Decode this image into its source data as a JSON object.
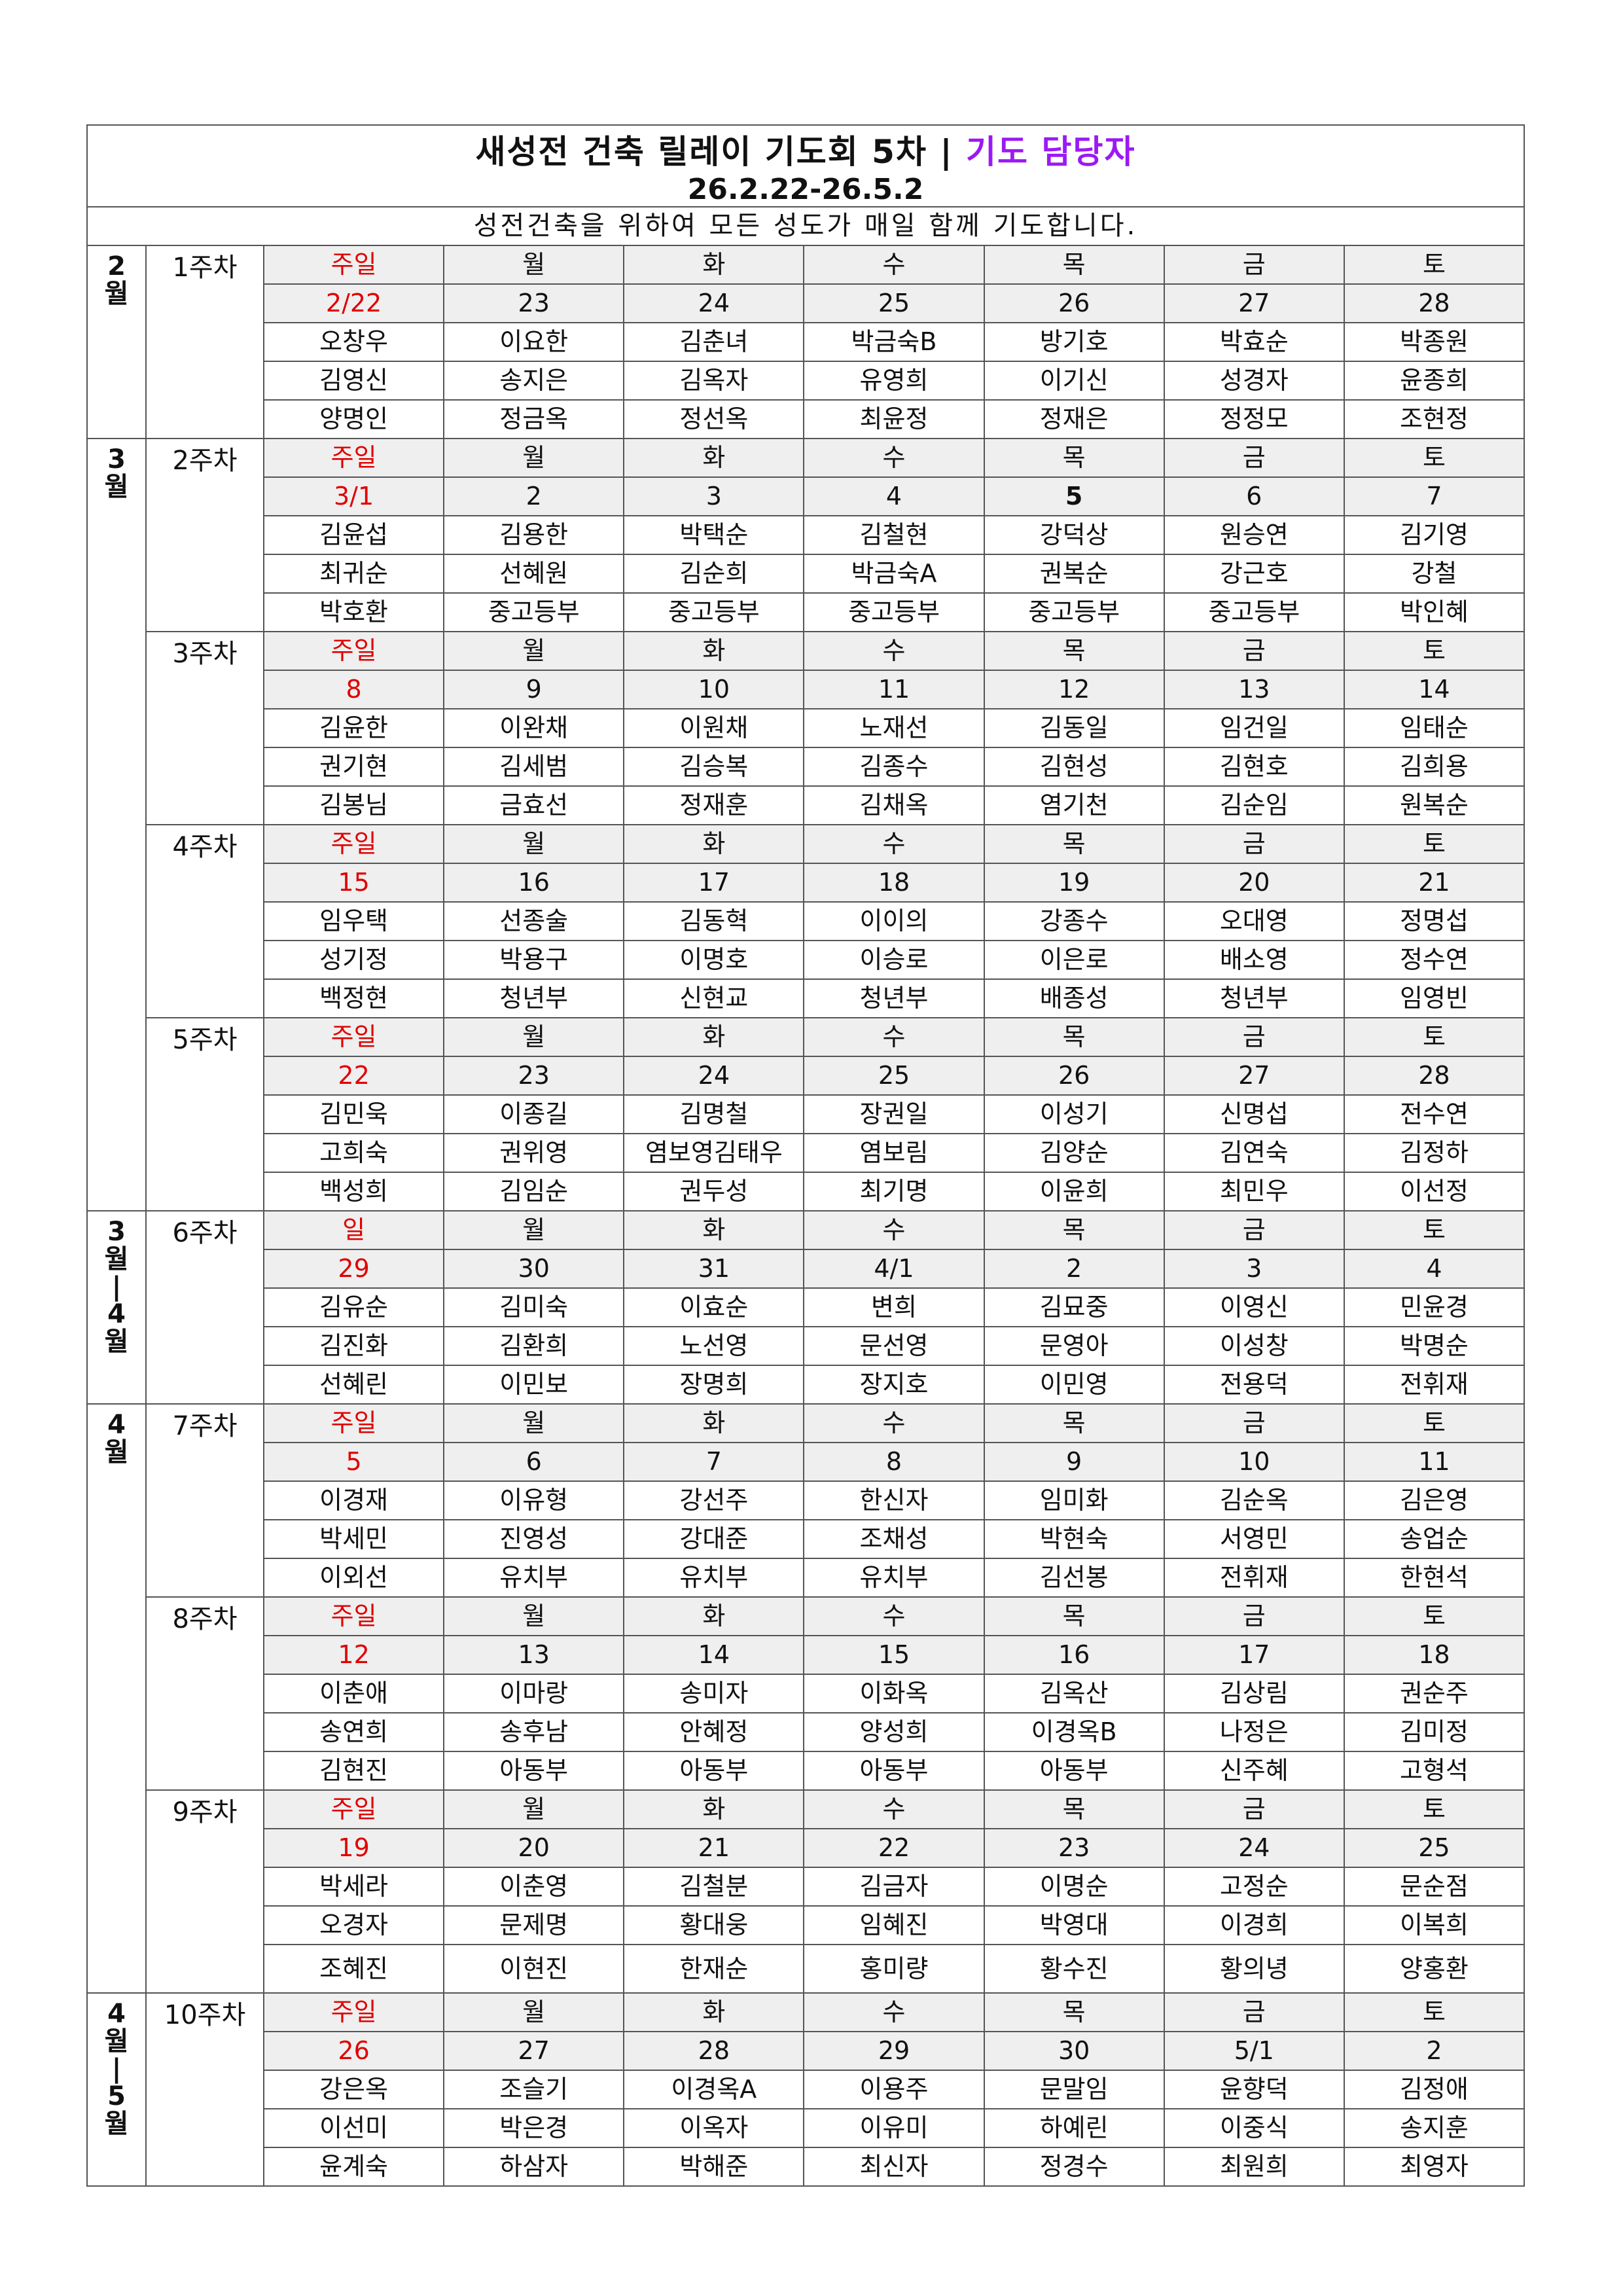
{
  "header": {
    "title_main": "새성전 건축 릴레이 기도회 5차 |",
    "title_accent": "기도 담당자",
    "accent_color": "#9b19f5",
    "period": "26.2.22-26.5.2",
    "subtitle": "성전건축을 위하여 모든 성도가 매일 함께 기도합니다."
  },
  "sunday_color": "#e00000",
  "day_names": [
    "월",
    "화",
    "수",
    "목",
    "금",
    "토"
  ],
  "months": [
    {
      "label": [
        "2",
        "월"
      ],
      "weeks": 1
    },
    {
      "label": [
        "3",
        "월"
      ],
      "weeks": 4
    },
    {
      "label": [
        "3",
        "월",
        "|",
        "4",
        "월"
      ],
      "weeks": 1
    },
    {
      "label": [
        "4",
        "월"
      ],
      "weeks": 3
    },
    {
      "label": [
        "4",
        "월",
        "|",
        "5",
        "월"
      ],
      "weeks": 1
    }
  ],
  "weeks": [
    {
      "label": "1주차",
      "sunday": "주일",
      "dates": [
        "2/22",
        "23",
        "24",
        "25",
        "26",
        "27",
        "28"
      ],
      "names": [
        [
          "오창우",
          "이요한",
          "김춘녀",
          "박금숙B",
          "방기호",
          "박효순",
          "박종원"
        ],
        [
          "김영신",
          "송지은",
          "김옥자",
          "유영희",
          "이기신",
          "성경자",
          "윤종희"
        ],
        [
          "양명인",
          "정금옥",
          "정선옥",
          "최윤정",
          "정재은",
          "정정모",
          "조현정"
        ]
      ]
    },
    {
      "label": "2주차",
      "sunday": "주일",
      "dates": [
        "3/1",
        "2",
        "3",
        "4",
        "5",
        "6",
        "7"
      ],
      "bold_date": 4,
      "names": [
        [
          "김윤섭",
          "김용한",
          "박택순",
          "김철현",
          "강덕상",
          "원승연",
          "김기영"
        ],
        [
          "최귀순",
          "선혜원",
          "김순희",
          "박금숙A",
          "권복순",
          "강근호",
          "강철"
        ],
        [
          "박호환",
          "중고등부",
          "중고등부",
          "중고등부",
          "중고등부",
          "중고등부",
          "박인혜"
        ]
      ]
    },
    {
      "label": "3주차",
      "sunday": "주일",
      "dates": [
        "8",
        "9",
        "10",
        "11",
        "12",
        "13",
        "14"
      ],
      "names": [
        [
          "김윤한",
          "이완채",
          "이원채",
          "노재선",
          "김동일",
          "임건일",
          "임태순"
        ],
        [
          "권기현",
          "김세범",
          "김승복",
          "김종수",
          "김현성",
          "김현호",
          "김희용"
        ],
        [
          "김봉님",
          "금효선",
          "정재훈",
          "김채옥",
          "염기천",
          "김순임",
          "원복순"
        ]
      ]
    },
    {
      "label": "4주차",
      "sunday": "주일",
      "dates": [
        "15",
        "16",
        "17",
        "18",
        "19",
        "20",
        "21"
      ],
      "names": [
        [
          "임우택",
          "선종술",
          "김동혁",
          "이이의",
          "강종수",
          "오대영",
          "정명섭"
        ],
        [
          "성기정",
          "박용구",
          "이명호",
          "이승로",
          "이은로",
          "배소영",
          "정수연"
        ],
        [
          "백정현",
          "청년부",
          "신현교",
          "청년부",
          "배종성",
          "청년부",
          "임영빈"
        ]
      ]
    },
    {
      "label": "5주차",
      "sunday": "주일",
      "dates": [
        "22",
        "23",
        "24",
        "25",
        "26",
        "27",
        "28"
      ],
      "names": [
        [
          "김민욱",
          "이종길",
          "김명철",
          "장권일",
          "이성기",
          "신명섭",
          "전수연"
        ],
        [
          "고희숙",
          "권위영",
          "염보영김태우",
          "염보림",
          "김양순",
          "김연숙",
          "김정하"
        ],
        [
          "백성희",
          "김임순",
          "권두성",
          "최기명",
          "이윤희",
          "최민우",
          "이선정"
        ]
      ]
    },
    {
      "label": "6주차",
      "sunday": "일",
      "dates": [
        "29",
        "30",
        "31",
        "4/1",
        "2",
        "3",
        "4"
      ],
      "names": [
        [
          "김유순",
          "김미숙",
          "이효순",
          "변희",
          "김묘중",
          "이영신",
          "민윤경"
        ],
        [
          "김진화",
          "김환희",
          "노선영",
          "문선영",
          "문영아",
          "이성창",
          "박명순"
        ],
        [
          "선혜린",
          "이민보",
          "장명희",
          "장지호",
          "이민영",
          "전용덕",
          "전휘재"
        ]
      ]
    },
    {
      "label": "7주차",
      "sunday": "주일",
      "dates": [
        "5",
        "6",
        "7",
        "8",
        "9",
        "10",
        "11"
      ],
      "names": [
        [
          "이경재",
          "이유형",
          "강선주",
          "한신자",
          "임미화",
          "김순옥",
          "김은영"
        ],
        [
          "박세민",
          "진영성",
          "강대준",
          "조채성",
          "박현숙",
          "서영민",
          "송업순"
        ],
        [
          "이외선",
          "유치부",
          "유치부",
          "유치부",
          "김선봉",
          "전휘재",
          "한현석"
        ]
      ]
    },
    {
      "label": "8주차",
      "sunday": "주일",
      "dates": [
        "12",
        "13",
        "14",
        "15",
        "16",
        "17",
        "18"
      ],
      "names": [
        [
          "이춘애",
          "이마랑",
          "송미자",
          "이화옥",
          "김옥산",
          "김상림",
          "권순주"
        ],
        [
          "송연희",
          "송후남",
          "안혜정",
          "양성희",
          "이경옥B",
          "나정은",
          "김미정"
        ],
        [
          "김현진",
          "아동부",
          "아동부",
          "아동부",
          "아동부",
          "신주혜",
          "고형석"
        ]
      ]
    },
    {
      "label": "9주차",
      "sunday": "주일",
      "dates": [
        "19",
        "20",
        "21",
        "22",
        "23",
        "24",
        "25"
      ],
      "tall_last": true,
      "names": [
        [
          "박세라",
          "이춘영",
          "김철분",
          "김금자",
          "이명순",
          "고정순",
          "문순점"
        ],
        [
          "오경자",
          "문제명",
          "황대웅",
          "임혜진",
          "박영대",
          "이경희",
          "이복희"
        ],
        [
          "조혜진",
          "이현진",
          "한재순",
          "홍미량",
          "황수진",
          "황의녕",
          "양홍환"
        ]
      ]
    },
    {
      "label": "10주차",
      "sunday": "주일",
      "dates": [
        "26",
        "27",
        "28",
        "29",
        "30",
        "5/1",
        "2"
      ],
      "names": [
        [
          "강은옥",
          "조슬기",
          "이경옥A",
          "이용주",
          "문말임",
          "윤향덕",
          "김정애"
        ],
        [
          "이선미",
          "박은경",
          "이옥자",
          "이유미",
          "하예린",
          "이중식",
          "송지훈"
        ],
        [
          "윤계숙",
          "하삼자",
          "박해준",
          "최신자",
          "정경수",
          "최원희",
          "최영자"
        ]
      ]
    }
  ]
}
